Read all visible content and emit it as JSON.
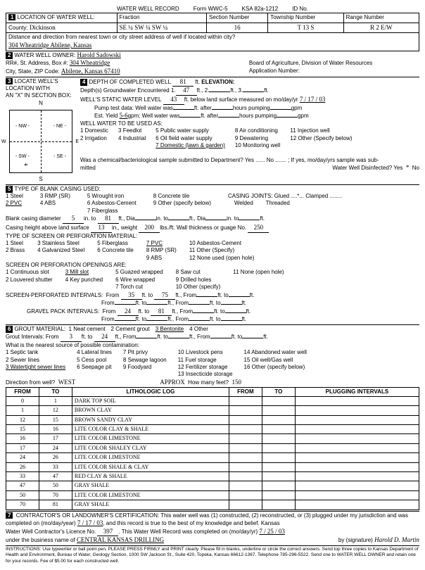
{
  "header": {
    "title": "WATER WELL RECORD",
    "form": "Form WWC-5",
    "ksa": "KSA 82a-1212",
    "idno": "ID No."
  },
  "s1": {
    "label": "LOCATION OF WATER WELL:",
    "fraction_label": "Fraction",
    "section_label": "Section Number",
    "township_label": "Township Number",
    "range_label": "Range Number",
    "county_label": "County:",
    "county": "Dickinson",
    "fraction": "SE ¼   SW ¼   SW ¼",
    "section": "16",
    "township": "T   13   S",
    "range": "R   2   E/W",
    "dist_label": "Distance and direction from nearest town or city street address of well if located within city?",
    "address": "304 Wheatridge   Abilene, Kansas"
  },
  "s2": {
    "owner_label": "WATER WELL OWNER:",
    "owner": "Harold Sadowski",
    "addr_label": "RR#, St. Address, Box #:",
    "addr": "304 Wheatridge",
    "csz_label": "City, State, ZIP Code:",
    "csz": "Abilene, Kansas  67410",
    "board": "Board of Agriculture, Division of Water Resources",
    "appno": "Application Number:"
  },
  "s3": {
    "label": "LOCATE WELL'S LOCATION WITH",
    "sub": "AN \"X\" IN SECTION BOX:"
  },
  "s4": {
    "label": "DEPTH OF COMPLETED WELL",
    "depth": "81",
    "ft": "ft.",
    "elev": "ELEVATION:",
    "depths_label": "Depth(s) Groundwater Encountered",
    "d1": "47",
    "static_label": "WELL'S STATIC WATER LEVEL",
    "static": "43",
    "static_tail": "ft. below land surface measured on mo/day/yr",
    "date": "7 / 17 / 03",
    "pump_label": "Pump test data:  Well water was",
    "after": "ft. after",
    "hours": "hours pumping",
    "gpm": "gpm",
    "est_label": "Est. Yield",
    "est": "5-6",
    "est_tail": "gpm;  Well water was",
    "hours2": "hours pumping",
    "use_label": "WELL WATER TO BE USED AS:",
    "uses": [
      "1 Domestic",
      "2 Irrigation",
      "3 Feedlot",
      "4 Industrial",
      "5 Public water supply",
      "6 Oil field water supply"
    ],
    "uses2": [
      "7 Domestic (lawn & garden)",
      "8 Air conditioning",
      "9 Dewatering",
      "10 Monitoring well",
      "11 Injection well",
      "12 Other (Specify below)"
    ],
    "chem": "Was a chemical/bacteriological sample submitted to Department? Yes ...... No ....... ; If yes, mo/day/yrs sample was sub-",
    "chem2": "mitted",
    "disinfect": "Water Well Disinfected? Yes",
    "no": "No"
  },
  "s5": {
    "label": "TYPE OF BLANK CASING USED:",
    "cols": [
      [
        "1 Steel",
        "2 PVC"
      ],
      [
        "3 RMP (SR)",
        "4 ABS"
      ],
      [
        "5 Wrought iron",
        "6 Asbestos-Cement",
        "7 Fiberglass"
      ],
      [
        "8 Concrete tile",
        "9 Other (specify below)"
      ]
    ],
    "joints": "CASING JOINTS: Glued ....*... Clamped ........",
    "joints2": "Welded",
    "joints3": "Threaded",
    "diam_label": "Blank casing diameter",
    "diam": "5",
    "into": "in. to",
    "into_v": "81",
    "ft": "ft., Dia",
    "in": "in. to",
    "ft2": "ft., Dia",
    "in2": "in. to",
    "ft3": "ft.",
    "height_label": "Casing height above land surface",
    "height": "13",
    "weight_label": "in., weight",
    "weight": "200",
    "weight_u": "lbs./ft. Wall thickness or guage No.",
    "gauge": "250",
    "screen_label": "TYPE OF SCREEN OR PERFORATION MATERIAL:",
    "screens": [
      [
        "1 Steel",
        "2 Brass"
      ],
      [
        "3 Stainless Steel",
        "4 Galvanized Steel"
      ],
      [
        "5 Fiberglass",
        "6 Concrete tile"
      ],
      [
        "7 PVC",
        "8 RMP (SR)",
        "9 ABS"
      ],
      [
        "10 Asbestos-Cement",
        "11 Other (Specify)",
        "12 None used (open hole)"
      ]
    ],
    "open_label": "SCREEN OR PERFORATION OPENINGS ARE:",
    "opens": [
      [
        "1 Continuous slot",
        "2 Louvered shutter"
      ],
      [
        "3 Mill slot",
        "4 Key punched"
      ],
      [
        "5 Guazed wrapped",
        "6 Wire wrapped",
        "7 Torch cut"
      ],
      [
        "8 Saw cut",
        "9 Drilled holes",
        "10 Other (specify)"
      ],
      [
        "11 None (open hole)"
      ]
    ],
    "si_label": "SCREEN-PERFORATED INTERVALS:",
    "from": "From",
    "to": "ft. to",
    "ft_from": "ft., From",
    "ft_to": "ft. to",
    "ftend": "ft.",
    "si1_from": "35",
    "si1_to": "75",
    "gp_label": "GRAVEL PACK INTERVALS:",
    "gp1_from": "24",
    "gp1_to": "81"
  },
  "s6": {
    "label": "GROUT MATERIAL:",
    "opts": [
      "1 Neat cement",
      "2 Cement grout",
      "3 Bentonite",
      "4 Other"
    ],
    "gi_label": "Grout Intervals:",
    "gi_from": "3",
    "gi_to": "24",
    "nearest": "What is the nearest source of possible contamination:",
    "c1": [
      "1 Septic tank",
      "2 Sewer lines",
      "3 Watertight sewer lines"
    ],
    "c2": [
      "4 Lateral lines",
      "5 Cess pool",
      "6 Seepage pit"
    ],
    "c3": [
      "7 Pit privy",
      "8 Sewage lagoon",
      "9 Foodyard"
    ],
    "c4": [
      "10 Livestock pens",
      "11 Fuel storage",
      "12 Fertilizer storage",
      "13 Insecticide storage"
    ],
    "c5": [
      "14 Abandoned water well",
      "15 Oil well/Gas well",
      "16 Other (specify below)"
    ],
    "dir_label": "Direction from well?",
    "dir": "WEST",
    "approx": "APPROX",
    "hmf": "How many feet?",
    "feet": "150",
    "th": [
      "FROM",
      "TO",
      "LITHOLOGIC LOG",
      "FROM",
      "TO",
      "PLUGGING INTERVALS"
    ],
    "rows": [
      [
        "0",
        "1",
        "DARK TOP SOIL",
        "",
        "",
        ""
      ],
      [
        "1",
        "12",
        "BROWN CLAY",
        "",
        "",
        ""
      ],
      [
        "12",
        "15",
        "BROWN SANDY CLAY",
        "",
        "",
        ""
      ],
      [
        "15",
        "16",
        "LITE COLOR CLAY & SHALE",
        "",
        "",
        ""
      ],
      [
        "16",
        "17",
        "LITE COLOR LIMESTONE",
        "",
        "",
        ""
      ],
      [
        "17",
        "24",
        "LITE COLOR SHALEY CLAY",
        "",
        "",
        ""
      ],
      [
        "24",
        "26",
        "LITE COLOR LIMESTONE",
        "",
        "",
        ""
      ],
      [
        "26",
        "33",
        "LITE COLOR SHALE & CLAY",
        "",
        "",
        ""
      ],
      [
        "33",
        "47",
        "RED CLAY & SHALE",
        "",
        "",
        ""
      ],
      [
        "47",
        "50",
        "GRAY SHALE",
        "",
        "",
        ""
      ],
      [
        "50",
        "70",
        "LITE COLOR LIMESTONE",
        "",
        "",
        ""
      ],
      [
        "70",
        "81",
        "GRAY SHALE",
        "",
        "",
        ""
      ]
    ]
  },
  "s7": {
    "label": "CONTRACTOR'S OR LANDOWNER'S CERTIFICATION: This water well was (1) constructed, (2) reconstructed, or (3) plugged under my jurisdiction and was",
    "completed": "completed on (mo/day/year)",
    "date1": "7 / 17 / 03",
    "record": ", and this record is true to the best of my knowledge and belief. Kansas",
    "lic": "Water Well Contractor's Licence No.",
    "licno": "397",
    "rec2": ". This Water Well Record was completed on (mo/day/yr)",
    "date2": "7 / 25 / 03",
    "under": "under the business name of",
    "biz": "CENTRAL KANSAS DRILLING",
    "sig": "by (signature)",
    "sigv": "Harold D. Martin"
  },
  "footer": "INSTRUCTIONS: Use typewriter or ball point pen. PLEASE PRESS FIRMLY and PRINT clearly. Please fill in blanks, underline or circle the correct answers. Send top three copies to Kansas Department of Health and Environment, Bureau of Water, Geology Section, 1000 SW Jackson St., Suite 420, Topeka, Kansas 66612-1367. Telephone 785-296-5522. Send one to WATER WELL OWNER and retain one for your records. Fee of $5.00 for each constructed well."
}
